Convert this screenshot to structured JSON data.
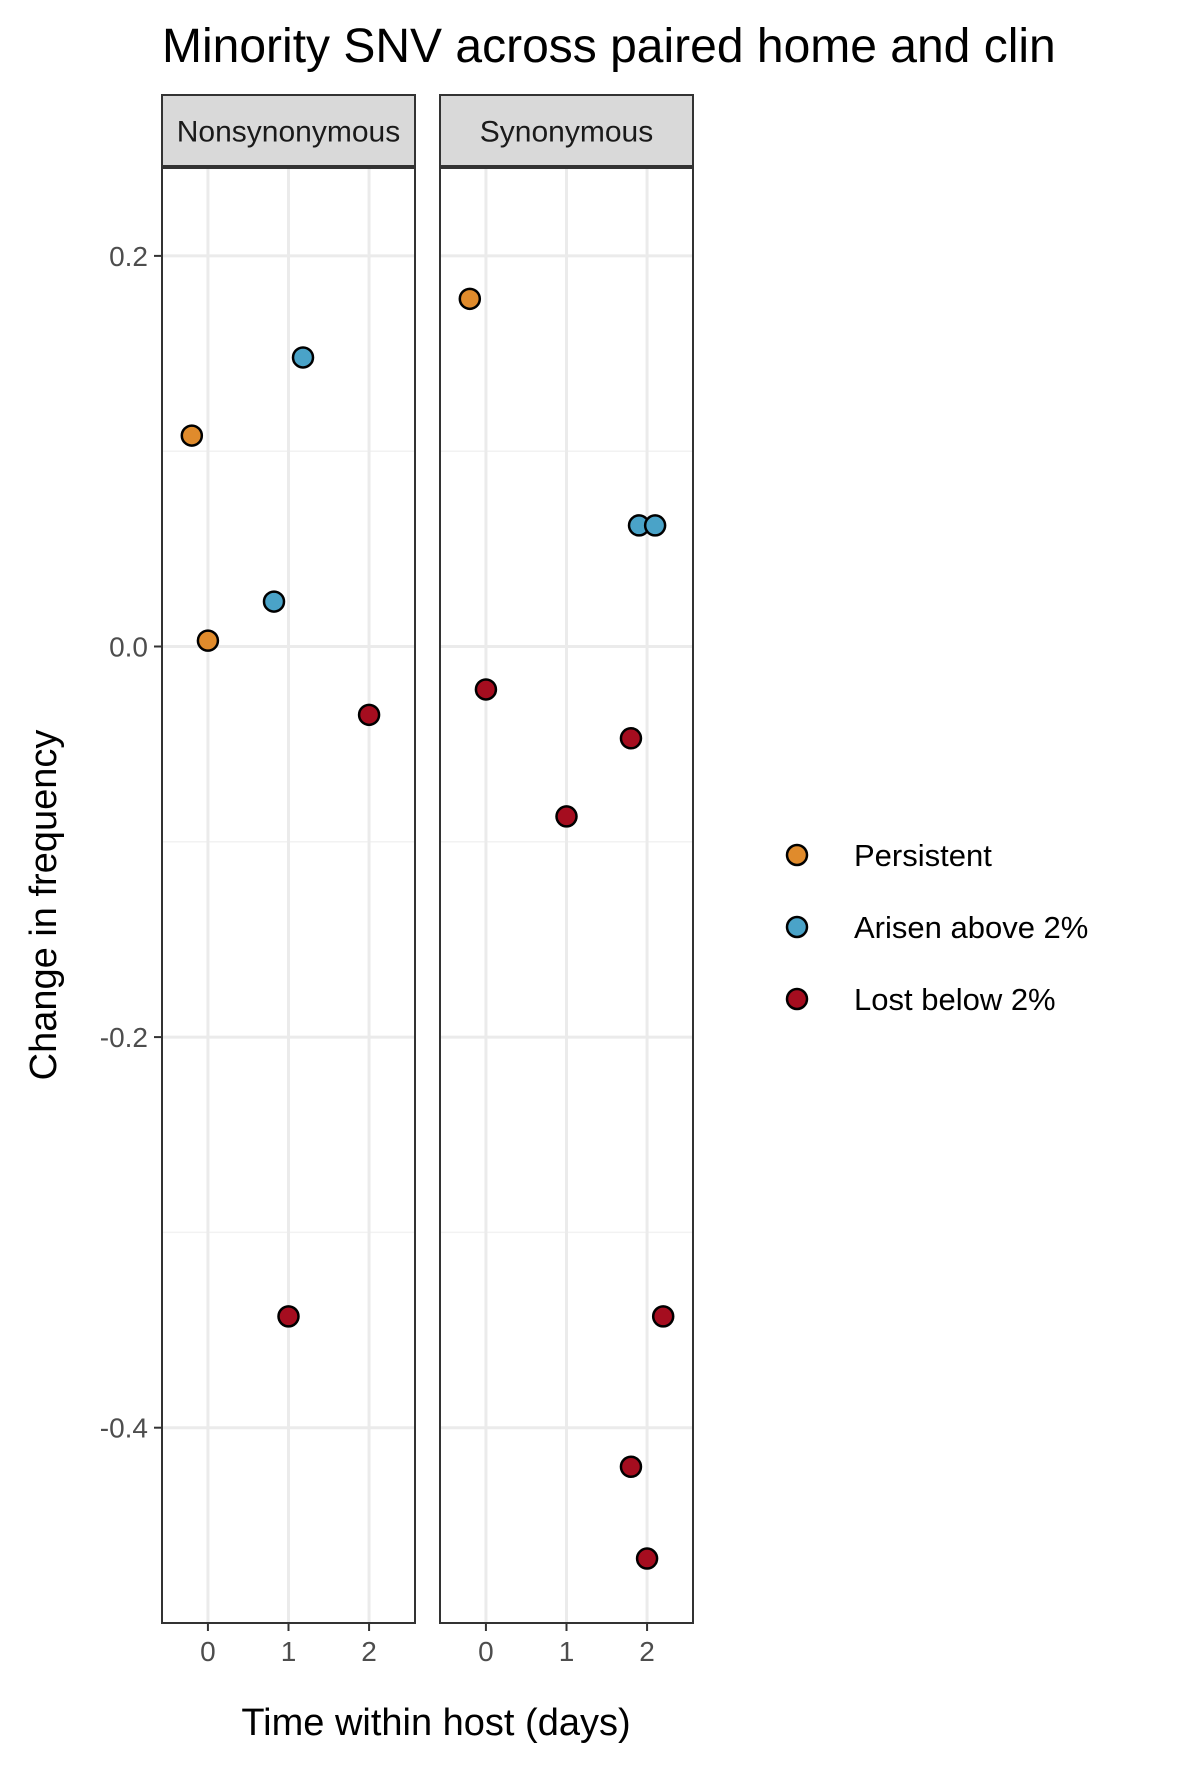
{
  "chart_data": {
    "type": "scatter",
    "title": "Minority SNV across paired home and clin",
    "xlabel": "Time within host (days)",
    "ylabel": "Change in frequency",
    "x_ticks": [
      0,
      1,
      2
    ],
    "y_ticks": [
      0.2,
      0.0,
      -0.2,
      -0.4
    ],
    "y_tick_labels": [
      "0.2",
      "0.0",
      "-0.2",
      "-0.4"
    ],
    "xlim": [
      -0.57,
      2.57
    ],
    "ylim": [
      -0.5,
      0.245
    ],
    "grid": true,
    "legend_position": "right",
    "legend": [
      {
        "name": "Persistent",
        "color": "#e08b2c"
      },
      {
        "name": "Arisen above 2%",
        "color": "#4aa3c8"
      },
      {
        "name": "Lost below 2%",
        "color": "#a50d1f"
      }
    ],
    "panels": [
      {
        "label": "Nonsynonymous",
        "points": [
          {
            "x": -0.2,
            "y": 0.108,
            "group": "Persistent"
          },
          {
            "x": 0.0,
            "y": 0.003,
            "group": "Persistent"
          },
          {
            "x": 1.18,
            "y": 0.148,
            "group": "Arisen above 2%"
          },
          {
            "x": 0.82,
            "y": 0.023,
            "group": "Arisen above 2%"
          },
          {
            "x": 2.0,
            "y": -0.035,
            "group": "Lost below 2%"
          },
          {
            "x": 1.0,
            "y": -0.343,
            "group": "Lost below 2%"
          }
        ]
      },
      {
        "label": "Synonymous",
        "points": [
          {
            "x": -0.2,
            "y": 0.178,
            "group": "Persistent"
          },
          {
            "x": 1.9,
            "y": 0.062,
            "group": "Arisen above 2%"
          },
          {
            "x": 2.1,
            "y": 0.062,
            "group": "Arisen above 2%"
          },
          {
            "x": 0.0,
            "y": -0.022,
            "group": "Lost below 2%"
          },
          {
            "x": 1.8,
            "y": -0.047,
            "group": "Lost below 2%"
          },
          {
            "x": 1.0,
            "y": -0.087,
            "group": "Lost below 2%"
          },
          {
            "x": 2.2,
            "y": -0.343,
            "group": "Lost below 2%"
          },
          {
            "x": 1.8,
            "y": -0.42,
            "group": "Lost below 2%"
          },
          {
            "x": 2.0,
            "y": -0.467,
            "group": "Lost below 2%"
          }
        ]
      }
    ]
  }
}
